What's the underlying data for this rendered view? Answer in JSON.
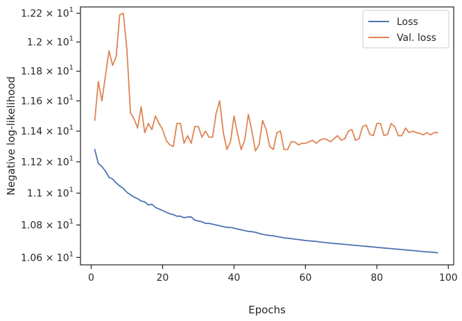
{
  "chart_data": {
    "type": "line",
    "title": "",
    "xlabel": "Epochs",
    "ylabel": "Negative log-likelihood",
    "yscale": "log",
    "xlim": [
      -3,
      101.5
    ],
    "ylim": [
      10.555,
      12.245
    ],
    "grid": false,
    "legend_position": "top-right",
    "x_ticks": [
      0,
      20,
      40,
      60,
      80,
      100
    ],
    "y_ticks": [
      {
        "value": 10.6,
        "mantissa": "1.06",
        "base": "10",
        "exp": "1"
      },
      {
        "value": 10.8,
        "mantissa": "1.08",
        "base": "10",
        "exp": "1"
      },
      {
        "value": 11.0,
        "mantissa": "1.1",
        "base": "10",
        "exp": "1"
      },
      {
        "value": 11.2,
        "mantissa": "1.12",
        "base": "10",
        "exp": "1"
      },
      {
        "value": 11.4,
        "mantissa": "1.14",
        "base": "10",
        "exp": "1"
      },
      {
        "value": 11.6,
        "mantissa": "1.16",
        "base": "10",
        "exp": "1"
      },
      {
        "value": 11.8,
        "mantissa": "1.18",
        "base": "10",
        "exp": "1"
      },
      {
        "value": 12.0,
        "mantissa": "1.2",
        "base": "10",
        "exp": "1"
      },
      {
        "value": 12.2,
        "mantissa": "1.22",
        "base": "10",
        "exp": "1"
      }
    ],
    "series": [
      {
        "name": "Loss",
        "color": "#4c72b0",
        "x": [
          1,
          2,
          3,
          4,
          5,
          6,
          7,
          8,
          9,
          10,
          11,
          12,
          13,
          14,
          15,
          16,
          17,
          18,
          19,
          20,
          21,
          22,
          23,
          24,
          25,
          26,
          27,
          28,
          29,
          30,
          31,
          32,
          33,
          34,
          35,
          36,
          37,
          38,
          39,
          40,
          41,
          42,
          43,
          44,
          45,
          46,
          47,
          48,
          49,
          50,
          51,
          52,
          53,
          54,
          55,
          56,
          57,
          58,
          59,
          60,
          61,
          62,
          63,
          64,
          65,
          66,
          67,
          68,
          69,
          70,
          71,
          72,
          73,
          74,
          75,
          76,
          77,
          78,
          79,
          80,
          81,
          82,
          83,
          84,
          85,
          86,
          87,
          88,
          89,
          90,
          91,
          92,
          93,
          94,
          95,
          96,
          97
        ],
        "y": [
          11.28,
          11.19,
          11.17,
          11.14,
          11.1,
          11.09,
          11.065,
          11.045,
          11.03,
          11.005,
          10.99,
          10.975,
          10.965,
          10.95,
          10.945,
          10.925,
          10.93,
          10.91,
          10.9,
          10.89,
          10.88,
          10.87,
          10.865,
          10.855,
          10.855,
          10.845,
          10.85,
          10.85,
          10.83,
          10.825,
          10.82,
          10.81,
          10.81,
          10.805,
          10.8,
          10.795,
          10.79,
          10.785,
          10.785,
          10.78,
          10.775,
          10.77,
          10.765,
          10.76,
          10.758,
          10.755,
          10.748,
          10.742,
          10.738,
          10.735,
          10.733,
          10.728,
          10.725,
          10.72,
          10.718,
          10.716,
          10.712,
          10.71,
          10.707,
          10.704,
          10.702,
          10.7,
          10.698,
          10.695,
          10.693,
          10.69,
          10.688,
          10.686,
          10.684,
          10.682,
          10.68,
          10.678,
          10.676,
          10.674,
          10.672,
          10.67,
          10.668,
          10.666,
          10.664,
          10.662,
          10.66,
          10.658,
          10.656,
          10.654,
          10.652,
          10.65,
          10.648,
          10.646,
          10.644,
          10.642,
          10.64,
          10.638,
          10.636,
          10.634,
          10.633,
          10.631,
          10.628
        ]
      },
      {
        "name": "Val. loss",
        "color": "#dd8452",
        "x": [
          1,
          2,
          3,
          4,
          5,
          6,
          7,
          8,
          9,
          10,
          11,
          12,
          13,
          14,
          15,
          16,
          17,
          18,
          19,
          20,
          21,
          22,
          23,
          24,
          25,
          26,
          27,
          28,
          29,
          30,
          31,
          32,
          33,
          34,
          35,
          36,
          37,
          38,
          39,
          40,
          41,
          42,
          43,
          44,
          45,
          46,
          47,
          48,
          49,
          50,
          51,
          52,
          53,
          54,
          55,
          56,
          57,
          58,
          59,
          60,
          61,
          62,
          63,
          64,
          65,
          66,
          67,
          68,
          69,
          70,
          71,
          72,
          73,
          74,
          75,
          76,
          77,
          78,
          79,
          80,
          81,
          82,
          83,
          84,
          85,
          86,
          87,
          88,
          89,
          90,
          91,
          92,
          93,
          94,
          95,
          96,
          97
        ],
        "y": [
          11.47,
          11.73,
          11.6,
          11.77,
          11.94,
          11.84,
          11.9,
          12.19,
          12.2,
          11.95,
          11.52,
          11.48,
          11.42,
          11.56,
          11.39,
          11.45,
          11.41,
          11.5,
          11.45,
          11.41,
          11.34,
          11.31,
          11.3,
          11.45,
          11.45,
          11.32,
          11.37,
          11.32,
          11.43,
          11.43,
          11.36,
          11.4,
          11.36,
          11.36,
          11.52,
          11.6,
          11.39,
          11.28,
          11.33,
          11.5,
          11.38,
          11.28,
          11.34,
          11.51,
          11.4,
          11.27,
          11.31,
          11.47,
          11.41,
          11.3,
          11.28,
          11.39,
          11.4,
          11.28,
          11.28,
          11.33,
          11.33,
          11.31,
          11.32,
          11.32,
          11.33,
          11.34,
          11.32,
          11.34,
          11.35,
          11.345,
          11.33,
          11.35,
          11.37,
          11.34,
          11.35,
          11.4,
          11.41,
          11.34,
          11.35,
          11.43,
          11.44,
          11.38,
          11.37,
          11.45,
          11.45,
          11.37,
          11.38,
          11.45,
          11.43,
          11.37,
          11.37,
          11.42,
          11.39,
          11.4,
          11.39,
          11.385,
          11.375,
          11.39,
          11.375,
          11.39,
          11.39
        ]
      }
    ]
  }
}
